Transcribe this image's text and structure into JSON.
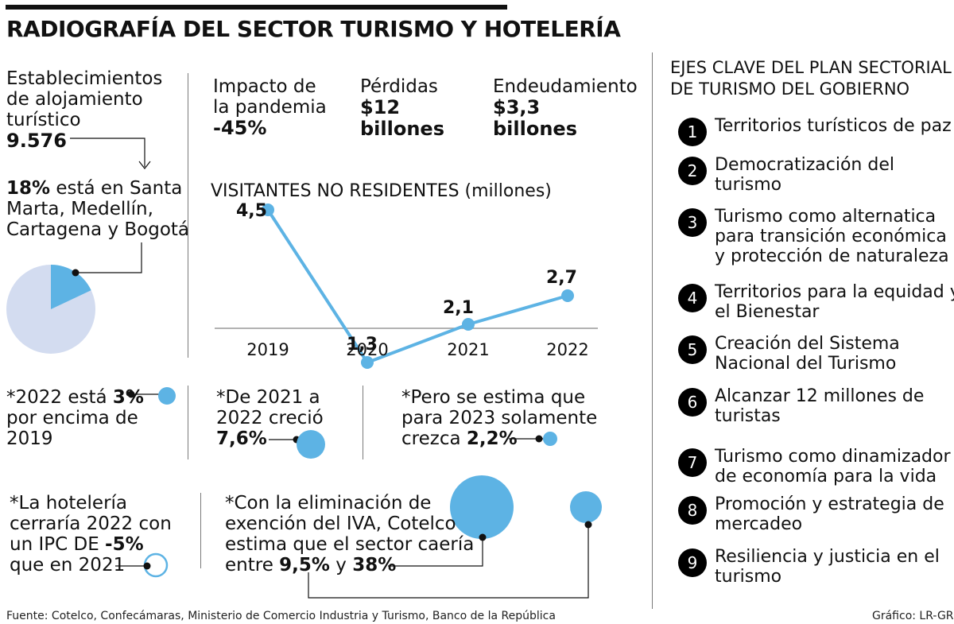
{
  "title": "RADIOGRAFÍA DEL SECTOR TURISMO Y HOTELERÍA",
  "colors": {
    "accent": "#5db3e4",
    "pie_bg": "#d3dcf0",
    "ink": "#111111"
  },
  "establecimientos": {
    "line1": "Establecimientos",
    "line2": "de alojamiento",
    "line3": "turístico",
    "value": "9.576"
  },
  "pie_note": {
    "pct": "18%",
    "rest1": " está en Santa",
    "line2": "Marta, Medellín,",
    "line3": "Cartagena y Bogotá"
  },
  "pie_share": 0.18,
  "kpis": [
    {
      "l1": "Impacto de",
      "l2": "la pandemia",
      "value": "-45%"
    },
    {
      "l1": "Pérdidas",
      "value": "$12",
      "unit": "billones"
    },
    {
      "l1": "Endeudamiento",
      "value": "$3,3",
      "unit": "billones"
    }
  ],
  "chart_data": {
    "type": "line",
    "title": "VISITANTES NO RESIDENTES (millones)",
    "categories": [
      "2019",
      "2020",
      "2021",
      "2022"
    ],
    "values": [
      4.5,
      1.3,
      2.1,
      2.7
    ],
    "labels": [
      "4,5",
      "1,3",
      "2,1",
      "2,7"
    ],
    "ylim": [
      1.0,
      5.0
    ],
    "xlabel": "",
    "ylabel": "",
    "grid": false,
    "color": "#5db3e4"
  },
  "notes": {
    "n2022": {
      "l1a": "*2022 está ",
      "l1b": "3%",
      "l2": "por encima de",
      "l3": "2019"
    },
    "n2021": {
      "l1": "*De 2021 a",
      "l2": "2022 creció",
      "l3": "7,6%"
    },
    "n2023": {
      "l1": "*Pero se estima que",
      "l2": "para 2023 solamente",
      "l3a": "crezca ",
      "l3b": "2,2%"
    },
    "hotel": {
      "l1": "*La hotelería",
      "l2": "cerraría 2022 con",
      "l3a": "un IPC DE ",
      "l3b": "-5%",
      "l4": "que en 2021"
    },
    "iva": {
      "l1": "*Con la eliminación de",
      "l2": "exención del IVA, Cotelco",
      "l3": "estima que el sector caería",
      "l4a": "entre ",
      "l4b": "9,5%",
      "l4c": " y ",
      "l4d": "38%"
    }
  },
  "ejes": {
    "title1": "EJES CLAVE DEL PLAN SECTORIAL",
    "title2": "DE TURISMO DEL GOBIERNO",
    "items": [
      {
        "n": "1",
        "l1": "Territorios turísticos de paz",
        "l2": "",
        "l3": ""
      },
      {
        "n": "2",
        "l1": "Democratización del",
        "l2": "turismo",
        "l3": ""
      },
      {
        "n": "3",
        "l1": "Turismo como alternatica",
        "l2": "para transición económica",
        "l3": "y protección de naturaleza"
      },
      {
        "n": "4",
        "l1": "Territorios para la equidad y",
        "l2": "el Bienestar",
        "l3": ""
      },
      {
        "n": "5",
        "l1": "Creación del Sistema",
        "l2": "Nacional del Turismo",
        "l3": ""
      },
      {
        "n": "6",
        "l1": "Alcanzar 12 millones de",
        "l2": "turistas",
        "l3": ""
      },
      {
        "n": "7",
        "l1": "Turismo como dinamizador",
        "l2": "de economía para la vida",
        "l3": ""
      },
      {
        "n": "8",
        "l1": "Promoción y estrategia de",
        "l2": "mercadeo",
        "l3": ""
      },
      {
        "n": "9",
        "l1": "Resiliencia y justicia en el",
        "l2": "turismo",
        "l3": ""
      }
    ]
  },
  "footer": {
    "source": "Fuente: Cotelco, Confecámaras, Ministerio de Comercio Industria y Turismo, Banco de la República",
    "credit": "Gráfico: LR-GR"
  }
}
